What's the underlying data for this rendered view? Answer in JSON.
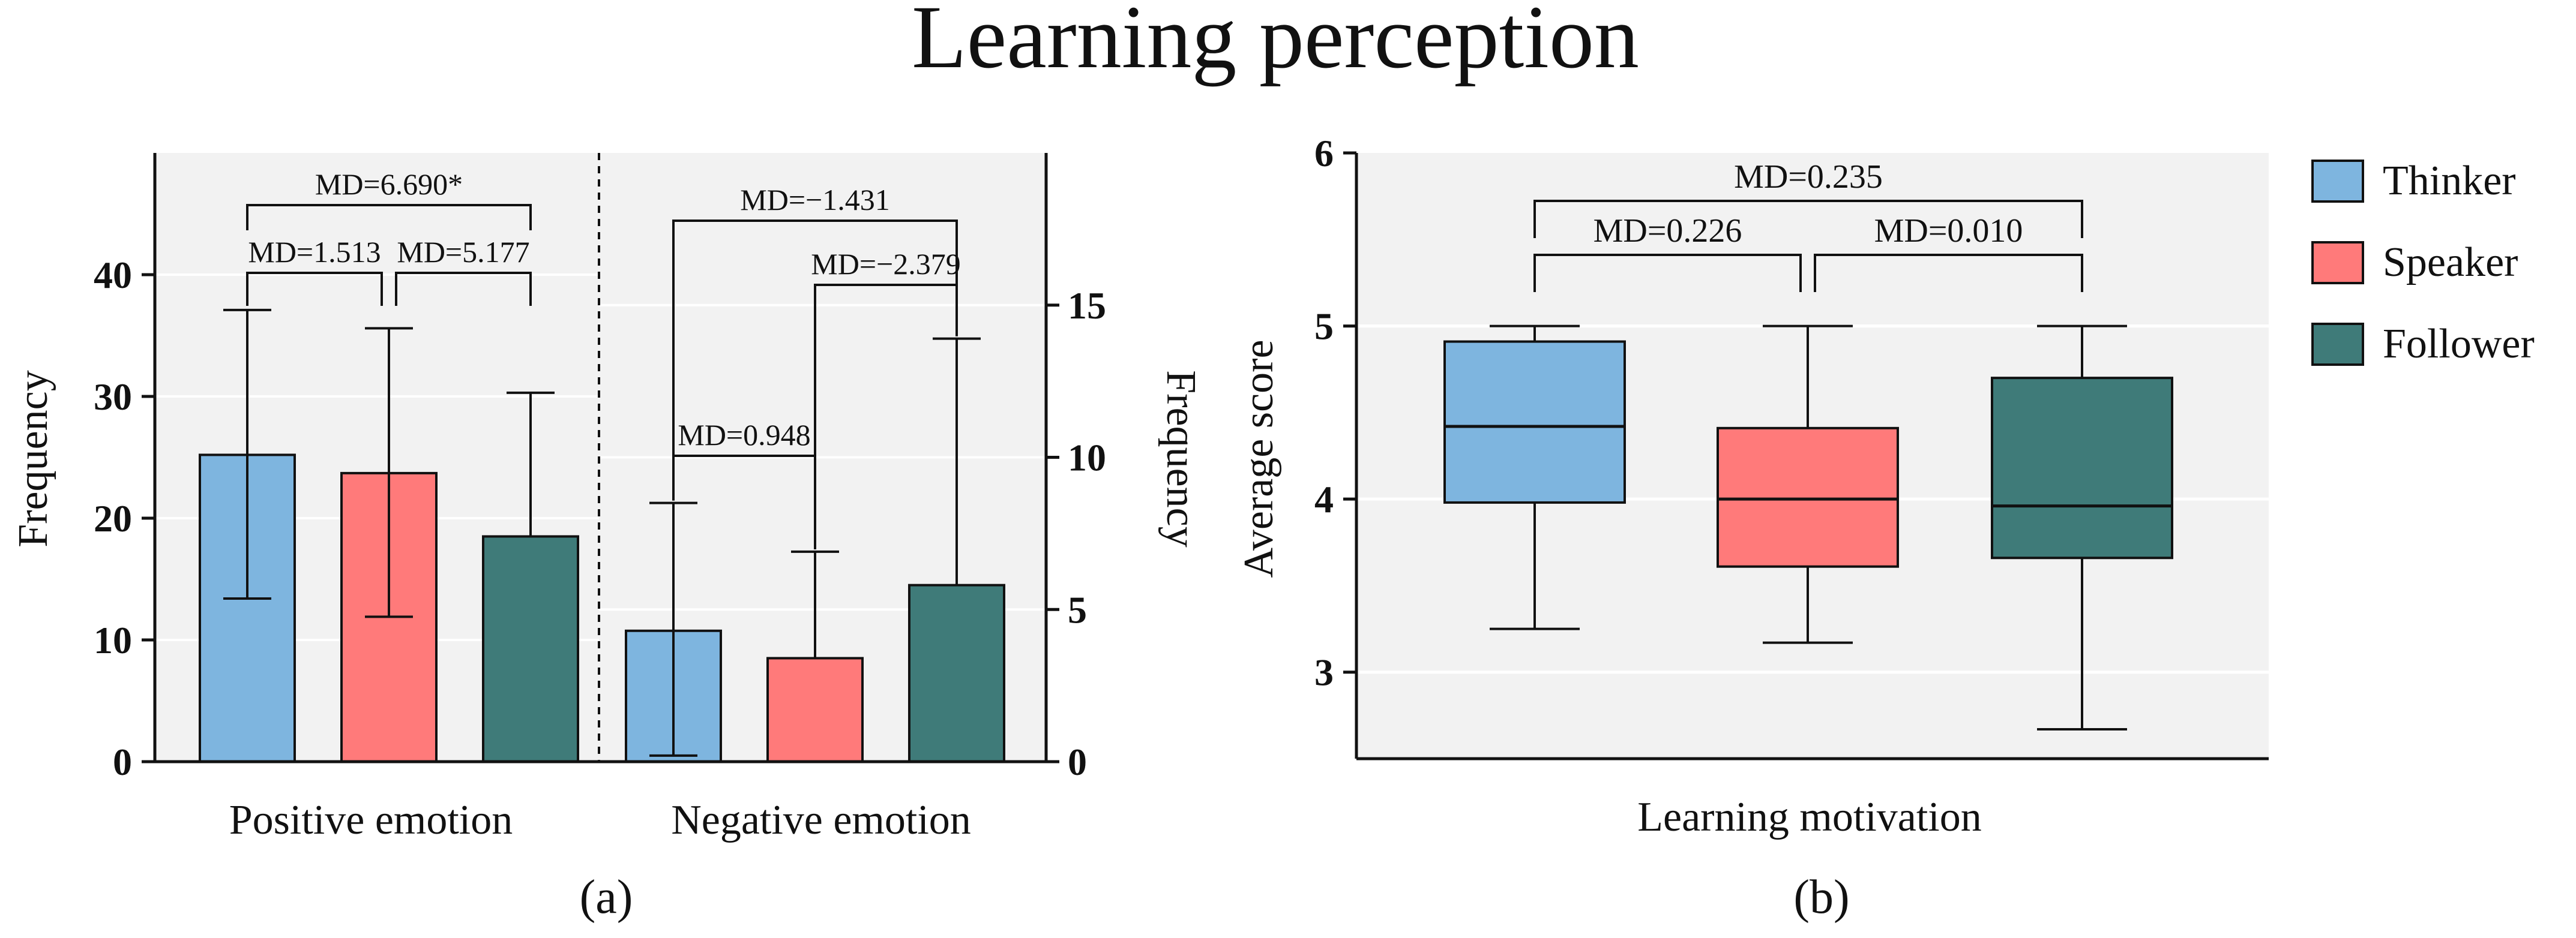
{
  "title": "Learning perception",
  "legend": [
    {
      "name": "Thinker",
      "color": "#7EB5DF"
    },
    {
      "name": "Speaker",
      "color": "#FF7A7A"
    },
    {
      "name": "Follower",
      "color": "#3F7B79"
    }
  ],
  "colors": {
    "panel_bg": "#F2F2F2",
    "grid": "#FFFFFF",
    "axis": "#111111"
  },
  "chart_data": [
    {
      "type": "bar",
      "panel_label": "(a)",
      "xlabel": "",
      "groups": [
        "Positive emotion",
        "Negative emotion"
      ],
      "left_axis": {
        "label": "Frequency",
        "ylim": [
          0,
          50
        ],
        "ticks": [
          0,
          10,
          20,
          30,
          40
        ]
      },
      "right_axis": {
        "label": "Frequency",
        "ylim": [
          0,
          20
        ],
        "ticks": [
          0,
          5,
          10,
          15
        ]
      },
      "series": [
        {
          "name": "Thinker",
          "values": [
            25.2,
            4.3
          ],
          "error_low": [
            13.4,
            0.2
          ],
          "error_high": [
            37.1,
            8.5
          ]
        },
        {
          "name": "Speaker",
          "values": [
            23.7,
            3.4
          ],
          "error_low": [
            11.9,
            3.4
          ],
          "error_high": [
            35.6,
            6.9
          ]
        },
        {
          "name": "Follower",
          "values": [
            18.5,
            5.8
          ],
          "error_low": [
            18.5,
            5.8
          ],
          "error_high": [
            30.3,
            13.9
          ]
        }
      ],
      "annotations": [
        {
          "text": "MD=6.690*",
          "group": 0,
          "from": 0,
          "to": 2,
          "level": 2
        },
        {
          "text": "MD=1.513",
          "group": 0,
          "from": 0,
          "to": 1,
          "level": 1
        },
        {
          "text": "MD=5.177",
          "group": 0,
          "from": 1,
          "to": 2,
          "level": 1
        },
        {
          "text": "MD=−1.431",
          "group": 1,
          "from": 0,
          "to": 2,
          "level": 2
        },
        {
          "text": "MD=−2.379",
          "group": 1,
          "from": 1,
          "to": 2,
          "level": 1
        },
        {
          "text": "MD=0.948",
          "group": 1,
          "from": 0,
          "to": 1,
          "level": 0
        }
      ]
    },
    {
      "type": "box",
      "panel_label": "(b)",
      "xlabel": "Learning motivation",
      "ylabel": "Average score",
      "ylim": [
        2.5,
        6
      ],
      "ticks": [
        3,
        4,
        5,
        6
      ],
      "series": [
        {
          "name": "Thinker",
          "min": 3.25,
          "q1": 3.98,
          "median": 4.42,
          "q3": 4.91,
          "max": 5.0
        },
        {
          "name": "Speaker",
          "min": 3.17,
          "q1": 3.61,
          "median": 4.0,
          "q3": 4.41,
          "max": 5.0
        },
        {
          "name": "Follower",
          "min": 2.67,
          "q1": 3.66,
          "median": 3.96,
          "q3": 4.7,
          "max": 5.0
        }
      ],
      "annotations": [
        {
          "text": "MD=0.235",
          "from": 0,
          "to": 2,
          "level": 1
        },
        {
          "text": "MD=0.226",
          "from": 0,
          "to": 1,
          "level": 0
        },
        {
          "text": "MD=0.010",
          "from": 1,
          "to": 2,
          "level": 0
        }
      ]
    }
  ]
}
